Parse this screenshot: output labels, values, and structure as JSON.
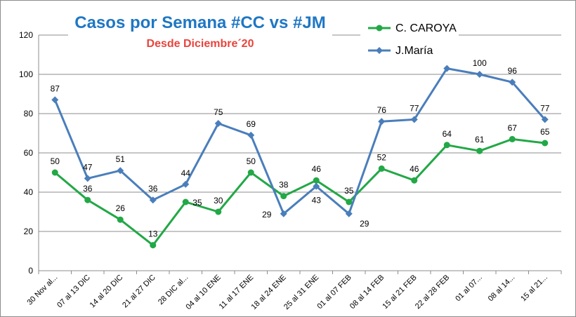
{
  "chart_data": {
    "type": "line",
    "title": "Casos por Semana #CC vs #JM",
    "subtitle": "Desde Diciembre´20",
    "xlabel": "",
    "ylabel": "",
    "ylim": [
      0,
      120
    ],
    "yticks": [
      0,
      20,
      40,
      60,
      80,
      100,
      120
    ],
    "grid": true,
    "legend_position": "top-right",
    "categories": [
      "30 Nov al...",
      "07 al 13 DIC",
      "14 al 20 DIC",
      "21 al 27 DIC",
      "28 DIC al...",
      "04 al 10 ENE",
      "11 al 17 ENE",
      "18 al 24 ENE",
      "25 al 31 ENE",
      "01 al 07 FEB",
      "08 al 14 FEB",
      "15 al 21 FEB",
      "22 al 28 FEB",
      "01 al 07...",
      "08 al 14...",
      "15 al 21..."
    ],
    "series": [
      {
        "name": "C. CAROYA",
        "color": "#22a846",
        "marker": "circle",
        "values": [
          50,
          36,
          26,
          13,
          35,
          30,
          50,
          38,
          46,
          35,
          52,
          46,
          64,
          61,
          67,
          65
        ],
        "label_positions": [
          "above",
          "above",
          "above",
          "above",
          "right",
          "above",
          "above",
          "above",
          "above",
          "above",
          "above",
          "above",
          "above",
          "above",
          "above",
          "above"
        ]
      },
      {
        "name": "J.María",
        "color": "#4a7ebb",
        "marker": "diamond",
        "values": [
          87,
          47,
          51,
          36,
          44,
          75,
          69,
          29,
          43,
          29,
          76,
          77,
          103,
          100,
          96,
          77
        ],
        "data_labels": [
          "87",
          "47",
          "51",
          "36",
          "44",
          "75",
          "69",
          "29",
          "43",
          "29",
          "76",
          "77",
          "",
          "100",
          "96",
          "77"
        ],
        "label_positions": [
          "above",
          "above",
          "above",
          "above",
          "above",
          "above",
          "above",
          "left",
          "below",
          "below-right",
          "above",
          "above",
          "above",
          "above",
          "above",
          "above"
        ]
      }
    ]
  }
}
